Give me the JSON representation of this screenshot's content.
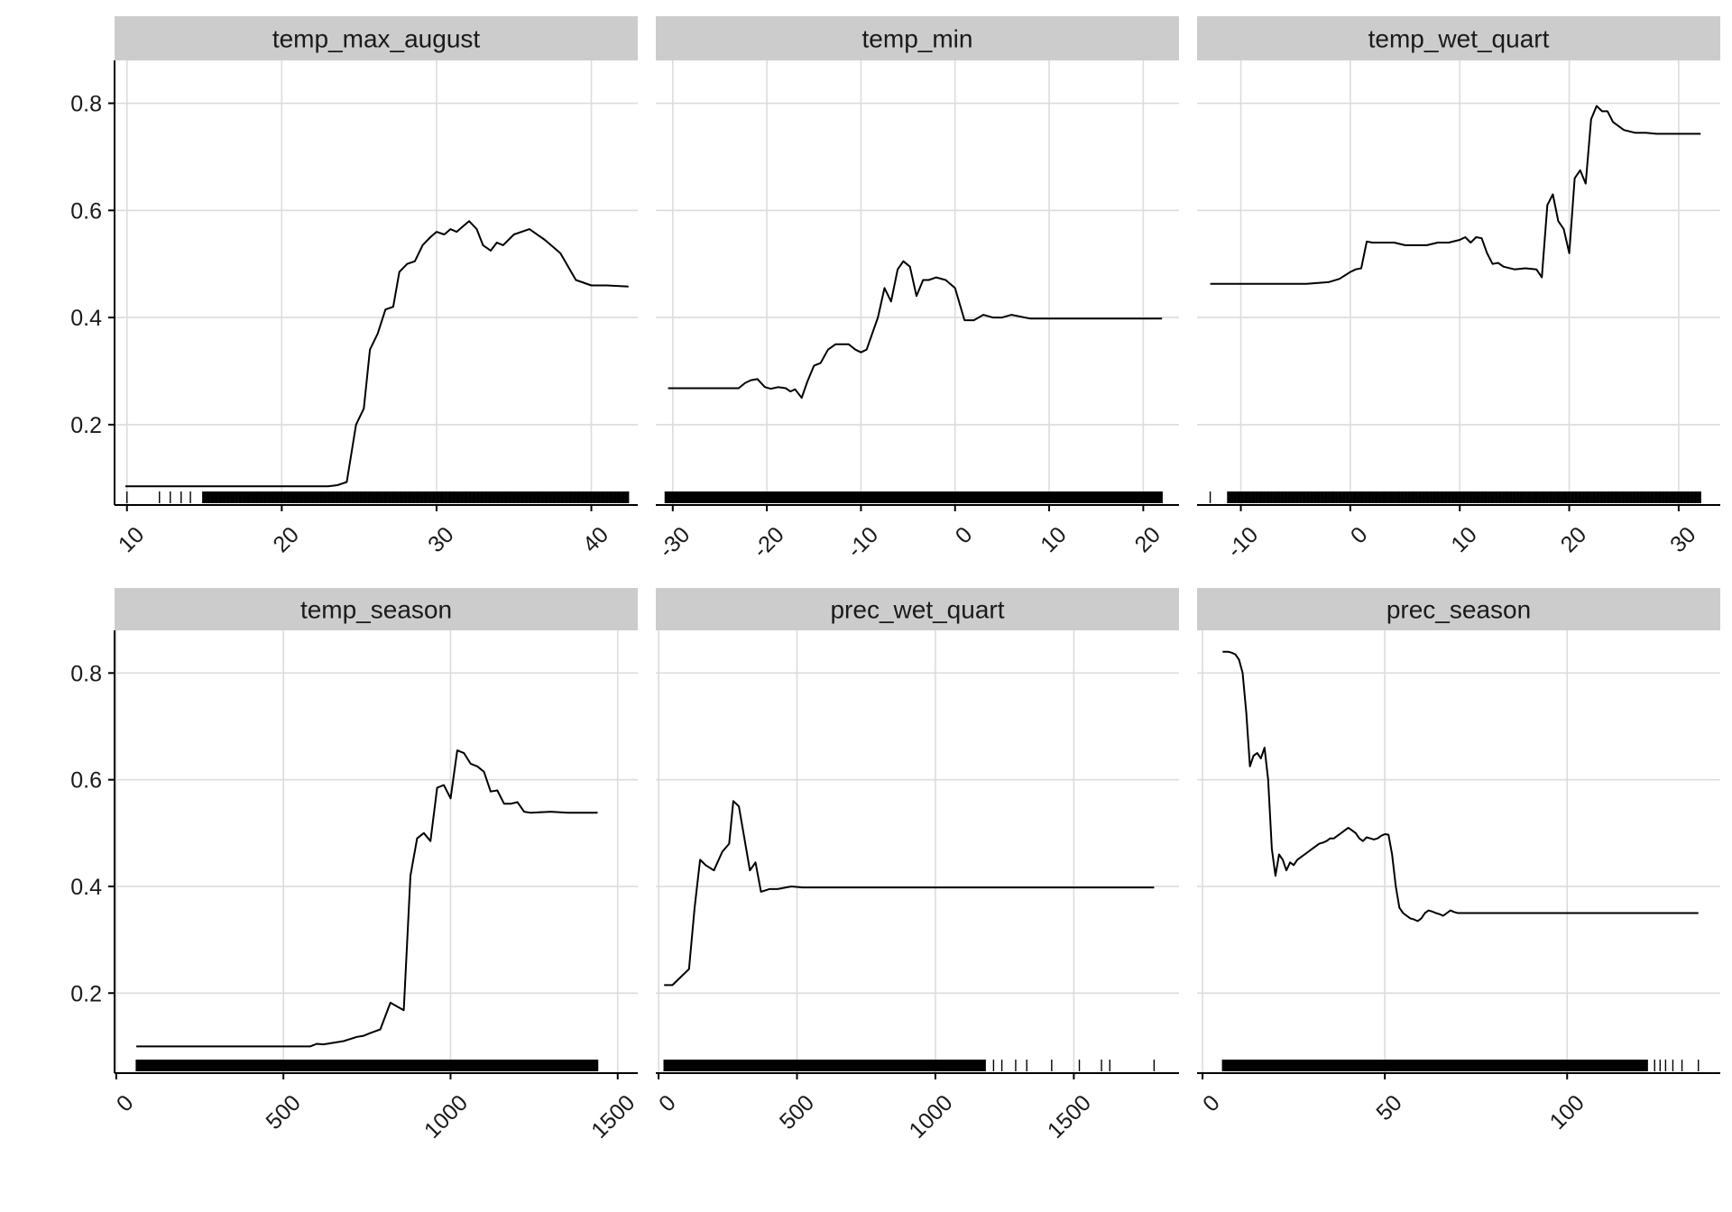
{
  "chart_data": [
    {
      "type": "line",
      "title": "temp_max_august",
      "xlim": [
        9.2,
        43
      ],
      "ylim": [
        0.05,
        0.88
      ],
      "x_ticks": [
        10,
        20,
        30,
        40
      ],
      "y_ticks": [
        0.2,
        0.4,
        0.6,
        0.8
      ],
      "series": [
        {
          "x": [
            9.9,
            12,
            15,
            18,
            21,
            23,
            23.6,
            24.2,
            24.8,
            25.3,
            25.7,
            26.2,
            26.7,
            27.2,
            27.6,
            28.1,
            28.6,
            29.1,
            29.6,
            30,
            30.5,
            30.9,
            31.3,
            31.7,
            32.1,
            32.6,
            33,
            33.5,
            33.9,
            34.3,
            35,
            36,
            37,
            38,
            39,
            40,
            41,
            42.4
          ],
          "y": [
            0.085,
            0.085,
            0.085,
            0.085,
            0.085,
            0.085,
            0.087,
            0.093,
            0.2,
            0.23,
            0.34,
            0.37,
            0.415,
            0.42,
            0.485,
            0.5,
            0.505,
            0.535,
            0.55,
            0.56,
            0.555,
            0.565,
            0.56,
            0.57,
            0.58,
            0.565,
            0.535,
            0.525,
            0.54,
            0.535,
            0.555,
            0.565,
            0.545,
            0.52,
            0.47,
            0.46,
            0.46,
            0.458
          ]
        }
      ],
      "rug": {
        "from": 14.9,
        "to": 42.4,
        "count": 420,
        "extra": [
          10,
          12.1,
          12.8,
          13.5,
          14.1
        ]
      }
    },
    {
      "type": "line",
      "title": "temp_min",
      "xlim": [
        -31.8,
        23.8
      ],
      "ylim": [
        0.05,
        0.88
      ],
      "x_ticks": [
        -30,
        -20,
        -10,
        0,
        10,
        20
      ],
      "y_ticks": [
        0.2,
        0.4,
        0.6,
        0.8
      ],
      "series": [
        {
          "x": [
            -30.5,
            -28,
            -26,
            -24,
            -23,
            -22.3,
            -21.7,
            -21,
            -20.2,
            -19.6,
            -18.8,
            -18,
            -17.5,
            -17,
            -16.3,
            -15.7,
            -15,
            -14.3,
            -13.5,
            -12.7,
            -12,
            -11.3,
            -10.6,
            -10,
            -9.4,
            -8.8,
            -8.2,
            -7.5,
            -6.8,
            -6.1,
            -5.5,
            -4.8,
            -4.1,
            -3.4,
            -2.8,
            -2,
            -1,
            0,
            1,
            2,
            3,
            4,
            5,
            6,
            8,
            10,
            15,
            22
          ],
          "y": [
            0.268,
            0.268,
            0.268,
            0.268,
            0.268,
            0.278,
            0.283,
            0.285,
            0.27,
            0.267,
            0.27,
            0.268,
            0.262,
            0.266,
            0.25,
            0.28,
            0.31,
            0.315,
            0.34,
            0.35,
            0.35,
            0.35,
            0.34,
            0.335,
            0.34,
            0.37,
            0.4,
            0.455,
            0.43,
            0.49,
            0.505,
            0.495,
            0.44,
            0.47,
            0.47,
            0.475,
            0.47,
            0.455,
            0.395,
            0.395,
            0.405,
            0.4,
            0.4,
            0.405,
            0.398,
            0.398,
            0.398,
            0.398
          ]
        }
      ],
      "rug": {
        "from": -30.8,
        "to": 22,
        "count": 560,
        "extra": []
      }
    },
    {
      "type": "line",
      "title": "temp_wet_quart",
      "xlim": [
        -14,
        33.8
      ],
      "ylim": [
        0.05,
        0.88
      ],
      "x_ticks": [
        -10,
        0,
        10,
        20,
        30
      ],
      "y_ticks": [
        0.2,
        0.4,
        0.6,
        0.8
      ],
      "series": [
        {
          "x": [
            -12.8,
            -8,
            -4,
            -2,
            -1,
            0,
            0.5,
            1,
            1.5,
            2,
            3,
            4,
            5,
            6,
            7,
            8,
            9,
            10,
            10.5,
            11,
            11.5,
            12,
            12.5,
            13,
            13.5,
            14,
            15,
            16,
            17,
            17.5,
            18,
            18.5,
            19,
            19.5,
            20,
            20.5,
            21,
            21.5,
            22,
            22.5,
            23,
            23.5,
            24,
            25,
            26,
            27,
            28,
            29,
            30,
            31,
            32
          ],
          "y": [
            0.463,
            0.463,
            0.463,
            0.466,
            0.472,
            0.485,
            0.49,
            0.492,
            0.542,
            0.54,
            0.54,
            0.54,
            0.535,
            0.535,
            0.535,
            0.54,
            0.54,
            0.545,
            0.55,
            0.54,
            0.55,
            0.548,
            0.52,
            0.5,
            0.502,
            0.495,
            0.49,
            0.492,
            0.49,
            0.475,
            0.61,
            0.63,
            0.58,
            0.565,
            0.52,
            0.66,
            0.675,
            0.65,
            0.77,
            0.795,
            0.785,
            0.785,
            0.765,
            0.75,
            0.745,
            0.745,
            0.743,
            0.743,
            0.743,
            0.743,
            0.743
          ]
        }
      ],
      "rug": {
        "from": -11.2,
        "to": 32,
        "count": 460,
        "extra": [
          -12.8
        ]
      }
    },
    {
      "type": "line",
      "title": "temp_season",
      "xlim": [
        -5,
        1560
      ],
      "ylim": [
        0.05,
        0.88
      ],
      "x_ticks": [
        0,
        500,
        1000,
        1500
      ],
      "y_ticks": [
        0.2,
        0.4,
        0.6,
        0.8
      ],
      "series": [
        {
          "x": [
            60,
            300,
            580,
            600,
            620,
            680,
            720,
            740,
            760,
            790,
            820,
            840,
            860,
            880,
            900,
            920,
            940,
            960,
            980,
            1000,
            1020,
            1040,
            1060,
            1080,
            1100,
            1120,
            1140,
            1160,
            1180,
            1200,
            1220,
            1240,
            1300,
            1350,
            1440
          ],
          "y": [
            0.1,
            0.1,
            0.1,
            0.105,
            0.104,
            0.11,
            0.118,
            0.12,
            0.125,
            0.132,
            0.182,
            0.175,
            0.168,
            0.42,
            0.49,
            0.5,
            0.485,
            0.585,
            0.59,
            0.565,
            0.655,
            0.65,
            0.63,
            0.625,
            0.615,
            0.578,
            0.58,
            0.555,
            0.555,
            0.558,
            0.54,
            0.538,
            0.54,
            0.538,
            0.538
          ]
        }
      ],
      "rug": {
        "from": 60,
        "to": 1440,
        "count": 620,
        "extra": []
      }
    },
    {
      "type": "line",
      "title": "prec_wet_quart",
      "xlim": [
        -10,
        1880
      ],
      "ylim": [
        0.05,
        0.88
      ],
      "x_ticks": [
        0,
        500,
        1000,
        1500
      ],
      "y_ticks": [
        0.2,
        0.4,
        0.6,
        0.8
      ],
      "series": [
        {
          "x": [
            20,
            50,
            80,
            110,
            130,
            150,
            170,
            200,
            230,
            255,
            270,
            290,
            310,
            330,
            350,
            370,
            400,
            430,
            460,
            480,
            520,
            600,
            800,
            1000,
            1200,
            1400,
            1600,
            1790
          ],
          "y": [
            0.215,
            0.215,
            0.23,
            0.245,
            0.36,
            0.45,
            0.44,
            0.43,
            0.465,
            0.48,
            0.56,
            0.55,
            0.49,
            0.43,
            0.445,
            0.39,
            0.395,
            0.395,
            0.398,
            0.4,
            0.398,
            0.398,
            0.398,
            0.398,
            0.398,
            0.398,
            0.398,
            0.398
          ]
        }
      ],
      "rug": {
        "from": 20,
        "to": 1180,
        "count": 560,
        "extra": [
          1210,
          1240,
          1290,
          1330,
          1420,
          1520,
          1600,
          1630,
          1790
        ]
      }
    },
    {
      "type": "line",
      "title": "prec_season",
      "xlim": [
        -1.5,
        142
      ],
      "ylim": [
        0.05,
        0.88
      ],
      "x_ticks": [
        0,
        50,
        100
      ],
      "y_ticks": [
        0.2,
        0.4,
        0.6,
        0.8
      ],
      "series": [
        {
          "x": [
            5.5,
            7,
            8,
            9,
            10,
            11,
            12,
            13,
            14,
            15,
            16,
            17,
            18,
            19,
            20,
            21,
            22,
            23,
            24,
            25,
            26,
            27,
            28,
            29,
            30,
            31,
            32,
            33,
            34,
            35,
            36,
            37,
            38,
            39,
            40,
            41,
            42,
            43,
            44,
            45,
            46,
            47,
            48,
            49,
            50,
            51,
            52,
            53,
            54,
            55,
            56,
            57,
            58,
            59,
            60,
            61,
            62,
            63,
            64,
            65,
            66,
            67,
            68,
            69,
            70,
            71,
            72,
            75,
            80,
            90,
            100,
            110,
            120,
            130,
            136
          ],
          "y": [
            0.84,
            0.84,
            0.838,
            0.835,
            0.825,
            0.8,
            0.725,
            0.625,
            0.645,
            0.65,
            0.64,
            0.66,
            0.6,
            0.47,
            0.42,
            0.46,
            0.45,
            0.43,
            0.445,
            0.44,
            0.45,
            0.455,
            0.46,
            0.465,
            0.47,
            0.475,
            0.48,
            0.482,
            0.485,
            0.49,
            0.49,
            0.495,
            0.5,
            0.505,
            0.51,
            0.505,
            0.5,
            0.49,
            0.485,
            0.492,
            0.49,
            0.488,
            0.49,
            0.495,
            0.498,
            0.497,
            0.46,
            0.4,
            0.36,
            0.35,
            0.345,
            0.34,
            0.338,
            0.335,
            0.34,
            0.35,
            0.355,
            0.353,
            0.35,
            0.348,
            0.345,
            0.35,
            0.355,
            0.352,
            0.35,
            0.35,
            0.35,
            0.35,
            0.35,
            0.35,
            0.35,
            0.35,
            0.35,
            0.35,
            0.35
          ]
        }
      ],
      "rug": {
        "from": 5.5,
        "to": 122,
        "count": 600,
        "extra": [
          124,
          125.5,
          127,
          129,
          131.5,
          136
        ]
      }
    }
  ]
}
